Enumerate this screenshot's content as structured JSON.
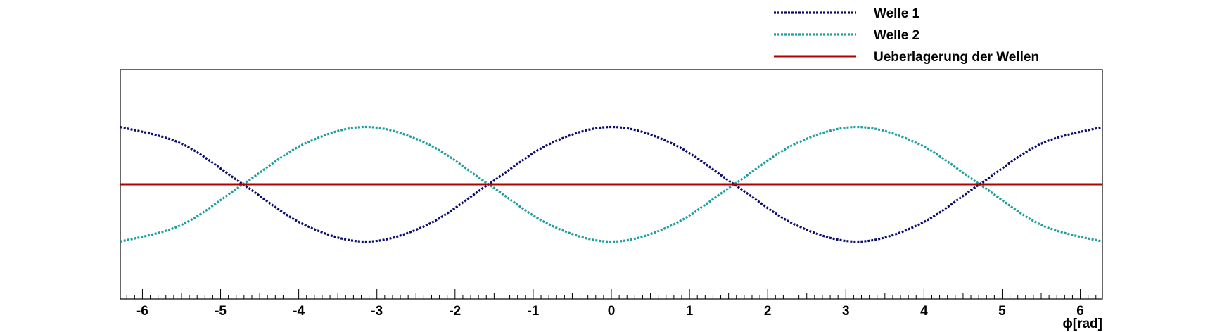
{
  "chart_data": {
    "type": "line",
    "title": "",
    "xlabel": "ϕ[rad]",
    "ylabel": "",
    "xlim": [
      -6.283,
      6.283
    ],
    "ylim": [
      -2,
      2
    ],
    "x_ticks": [
      -6,
      -5,
      -4,
      -3,
      -2,
      -1,
      0,
      1,
      2,
      3,
      4,
      5,
      6
    ],
    "y_ticks": [],
    "grid": false,
    "legend_position": "top-right",
    "x_samples": [
      -6.283,
      -5.498,
      -4.712,
      -3.927,
      -3.142,
      -2.356,
      -1.571,
      -0.785,
      0,
      0.785,
      1.571,
      2.356,
      3.142,
      3.927,
      4.712,
      5.498,
      6.283
    ],
    "series": [
      {
        "name": "Welle 1",
        "color": "#0b0b6e",
        "style": "dotted",
        "values": [
          1,
          0.707,
          0,
          -0.707,
          -1,
          -0.707,
          0,
          0.707,
          1,
          0.707,
          0,
          -0.707,
          -1,
          -0.707,
          0,
          0.707,
          1
        ]
      },
      {
        "name": "Welle 2",
        "color": "#1f9e9e",
        "style": "dotted",
        "values": [
          -1,
          -0.707,
          0,
          0.707,
          1,
          0.707,
          0,
          -0.707,
          -1,
          -0.707,
          0,
          0.707,
          1,
          0.707,
          0,
          -0.707,
          -1
        ]
      },
      {
        "name": "Ueberlagerung der Wellen",
        "color": "#b30000",
        "style": "solid",
        "values": [
          0,
          0,
          0,
          0,
          0,
          0,
          0,
          0,
          0,
          0,
          0,
          0,
          0,
          0,
          0,
          0,
          0
        ]
      }
    ]
  }
}
